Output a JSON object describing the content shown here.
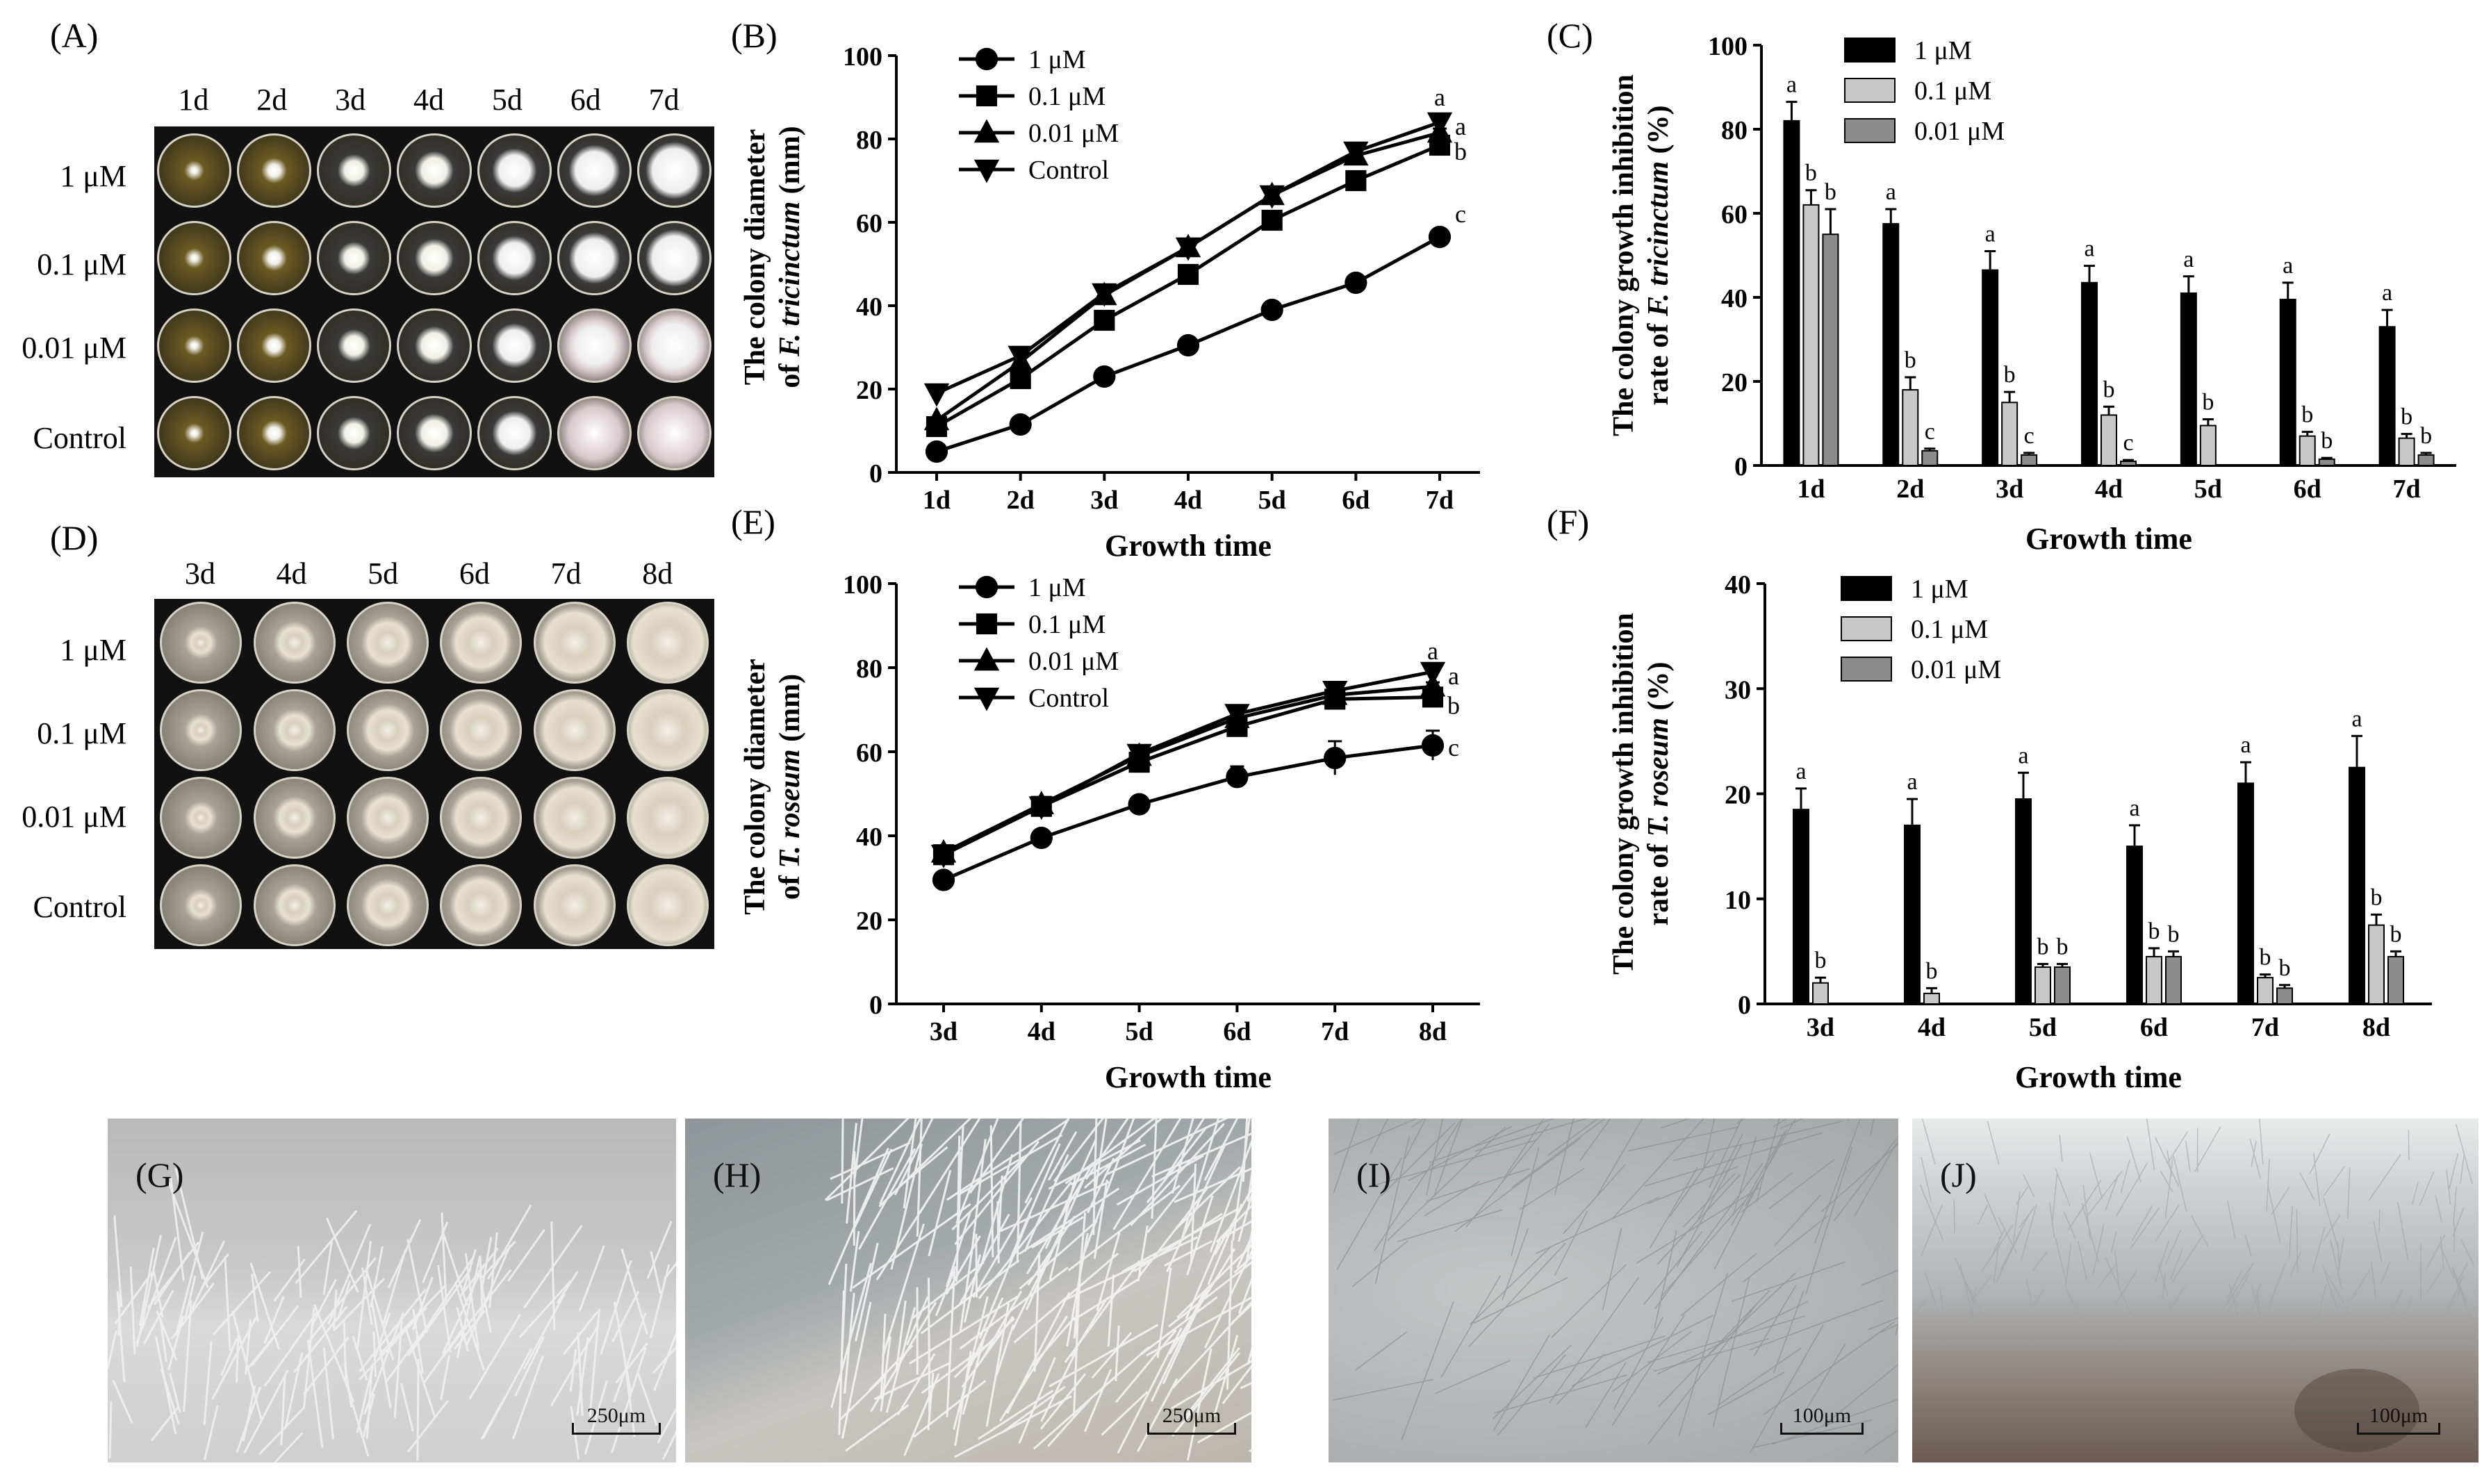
{
  "panels": {
    "A": "(A)",
    "B": "(B)",
    "C": "(C)",
    "D": "(D)",
    "E": "(E)",
    "F": "(F)",
    "G": "(G)",
    "H": "(H)",
    "I": "(I)",
    "J": "(J)"
  },
  "photo_A": {
    "days": [
      "1d",
      "2d",
      "3d",
      "4d",
      "5d",
      "6d",
      "7d"
    ],
    "rows": [
      "1 μM",
      "0.1 μM",
      "0.01 μM",
      "Control"
    ]
  },
  "photo_D": {
    "days": [
      "3d",
      "4d",
      "5d",
      "6d",
      "7d",
      "8d"
    ],
    "rows": [
      "1 μM",
      "0.1 μM",
      "0.01 μM",
      "Control"
    ]
  },
  "scale_bars": {
    "G": "250μm",
    "H": "250μm",
    "I": "100μm",
    "J": "100μm"
  },
  "colors": {
    "black": "#000000",
    "light_gray": "#c8c8c8",
    "mid_gray": "#8c8c8c"
  },
  "chart_data": [
    {
      "id": "B",
      "type": "line",
      "categories": [
        "1d",
        "2d",
        "3d",
        "4d",
        "5d",
        "6d",
        "7d"
      ],
      "series": [
        {
          "name": "1 μM",
          "marker": "circle",
          "values": [
            5,
            11.5,
            23,
            30.5,
            39,
            45.5,
            56.5
          ],
          "err": [
            0,
            0,
            0,
            0,
            0,
            0,
            1
          ]
        },
        {
          "name": "0.1 μM",
          "marker": "square",
          "values": [
            11,
            22.5,
            36.5,
            47.5,
            60.5,
            70,
            78.5
          ],
          "err": [
            0,
            0,
            0,
            0,
            0,
            0,
            1
          ]
        },
        {
          "name": "0.01 μM",
          "marker": "triangle-up",
          "values": [
            12.5,
            26.5,
            42.5,
            54,
            66.5,
            76,
            81.5
          ],
          "err": [
            0,
            0,
            0,
            0,
            1.5,
            1,
            1
          ]
        },
        {
          "name": "Control",
          "marker": "triangle-down",
          "values": [
            19,
            28,
            43,
            54,
            66.5,
            77,
            84
          ],
          "err": [
            0,
            0,
            0,
            0,
            1.5,
            2,
            1
          ]
        }
      ],
      "end_letters": [
        {
          "text": "a",
          "value": 90
        },
        {
          "text": "a",
          "value": 83
        },
        {
          "text": "b",
          "value": 77
        },
        {
          "text": "c",
          "value": 62
        }
      ],
      "xlabel": "Growth time",
      "ylabel_line1": "The colony diameter",
      "ylabel_line2_pre": "of ",
      "ylabel_line2_it": "F. tricinctum",
      "ylabel_line2_post": " (mm)",
      "ylim": [
        0,
        100
      ],
      "yticks": [
        0,
        20,
        40,
        60,
        80,
        100
      ],
      "legend": "top-left"
    },
    {
      "id": "C",
      "type": "bar",
      "categories": [
        "1d",
        "2d",
        "3d",
        "4d",
        "5d",
        "6d",
        "7d"
      ],
      "series": [
        {
          "name": "1 μM",
          "color": "#000000",
          "values": [
            82,
            57.5,
            46.5,
            43.5,
            41,
            39.5,
            33
          ],
          "err": [
            4.5,
            3.5,
            4.5,
            4,
            4,
            4,
            4
          ],
          "letters": [
            "a",
            "a",
            "a",
            "a",
            "a",
            "a",
            "a"
          ]
        },
        {
          "name": "0.1 μM",
          "color": "#c8c8c8",
          "values": [
            62,
            18,
            15,
            12,
            9.5,
            7,
            6.5
          ],
          "err": [
            3.5,
            3,
            2.5,
            2,
            1.5,
            1,
            1
          ],
          "letters": [
            "b",
            "b",
            "b",
            "b",
            "b",
            "b",
            "b"
          ]
        },
        {
          "name": "0.01 μM",
          "color": "#8c8c8c",
          "values": [
            55,
            3.5,
            2.5,
            1,
            0,
            1.5,
            2.5
          ],
          "err": [
            6,
            0.5,
            0.5,
            0.3,
            0,
            0.3,
            0.5
          ],
          "letters": [
            "b",
            "c",
            "c",
            "c",
            "",
            "b",
            "b"
          ]
        }
      ],
      "xlabel": "Growth time",
      "ylabel_line1": "The colony growth inhibition",
      "ylabel_line2_pre": "rate of ",
      "ylabel_line2_it": "F. tricinctum",
      "ylabel_line2_post": " (%)",
      "ylim": [
        0,
        100
      ],
      "yticks": [
        0,
        20,
        40,
        60,
        80,
        100
      ],
      "legend": "top-right"
    },
    {
      "id": "E",
      "type": "line",
      "categories": [
        "3d",
        "4d",
        "5d",
        "6d",
        "7d",
        "8d"
      ],
      "series": [
        {
          "name": "1 μM",
          "marker": "circle",
          "values": [
            29.5,
            39.5,
            47.5,
            54,
            58.5,
            61.5
          ],
          "err": [
            0,
            0,
            0,
            2.5,
            4,
            3.5
          ]
        },
        {
          "name": "0.1 μM",
          "marker": "square",
          "values": [
            35.5,
            47,
            57.5,
            66,
            72.5,
            73
          ],
          "err": [
            0,
            0,
            0,
            0,
            1,
            1.5
          ]
        },
        {
          "name": "0.01 μM",
          "marker": "triangle-up",
          "values": [
            36,
            47.5,
            59,
            68,
            73.5,
            75.5
          ],
          "err": [
            0,
            0,
            0,
            0,
            1,
            1
          ]
        },
        {
          "name": "Control",
          "marker": "triangle-down",
          "values": [
            35.5,
            47,
            59.5,
            69,
            74.5,
            79
          ],
          "err": [
            0,
            0,
            0,
            0,
            1,
            1
          ]
        }
      ],
      "end_letters": [
        {
          "text": "a",
          "value": 84
        },
        {
          "text": "a",
          "value": 78
        },
        {
          "text": "b",
          "value": 71
        },
        {
          "text": "c",
          "value": 61
        }
      ],
      "xlabel": "Growth time",
      "ylabel_line1": "The colony diameter",
      "ylabel_line2_pre": "of ",
      "ylabel_line2_it": "T. roseum",
      "ylabel_line2_post": " (mm)",
      "ylim": [
        0,
        100
      ],
      "yticks": [
        0,
        20,
        40,
        60,
        80,
        100
      ],
      "legend": "top-left"
    },
    {
      "id": "F",
      "type": "bar",
      "categories": [
        "3d",
        "4d",
        "5d",
        "6d",
        "7d",
        "8d"
      ],
      "series": [
        {
          "name": "1 μM",
          "color": "#000000",
          "values": [
            18.5,
            17,
            19.5,
            15,
            21,
            22.5
          ],
          "err": [
            2,
            2.5,
            2.5,
            2,
            2,
            3
          ],
          "letters": [
            "a",
            "a",
            "a",
            "a",
            "a",
            "a"
          ]
        },
        {
          "name": "0.1 μM",
          "color": "#c8c8c8",
          "values": [
            2,
            1,
            3.5,
            4.5,
            2.5,
            7.5
          ],
          "err": [
            0.5,
            0.5,
            0.3,
            0.8,
            0.3,
            1
          ],
          "letters": [
            "b",
            "b",
            "b",
            "b",
            "b",
            "b"
          ]
        },
        {
          "name": "0.01 μM",
          "color": "#8c8c8c",
          "values": [
            0,
            0,
            3.5,
            4.5,
            1.5,
            4.5
          ],
          "err": [
            0,
            0,
            0.3,
            0.5,
            0.3,
            0.5
          ],
          "letters": [
            "",
            "",
            "b",
            "b",
            "b",
            "b"
          ]
        }
      ],
      "xlabel": "Growth time",
      "ylabel_line1": "The colony growth inhibition",
      "ylabel_line2_pre": "rate of ",
      "ylabel_line2_it": "T. roseum",
      "ylabel_line2_post": " (%)",
      "ylim": [
        0,
        40
      ],
      "yticks": [
        0,
        10,
        20,
        30,
        40
      ],
      "legend": "top-left"
    }
  ]
}
